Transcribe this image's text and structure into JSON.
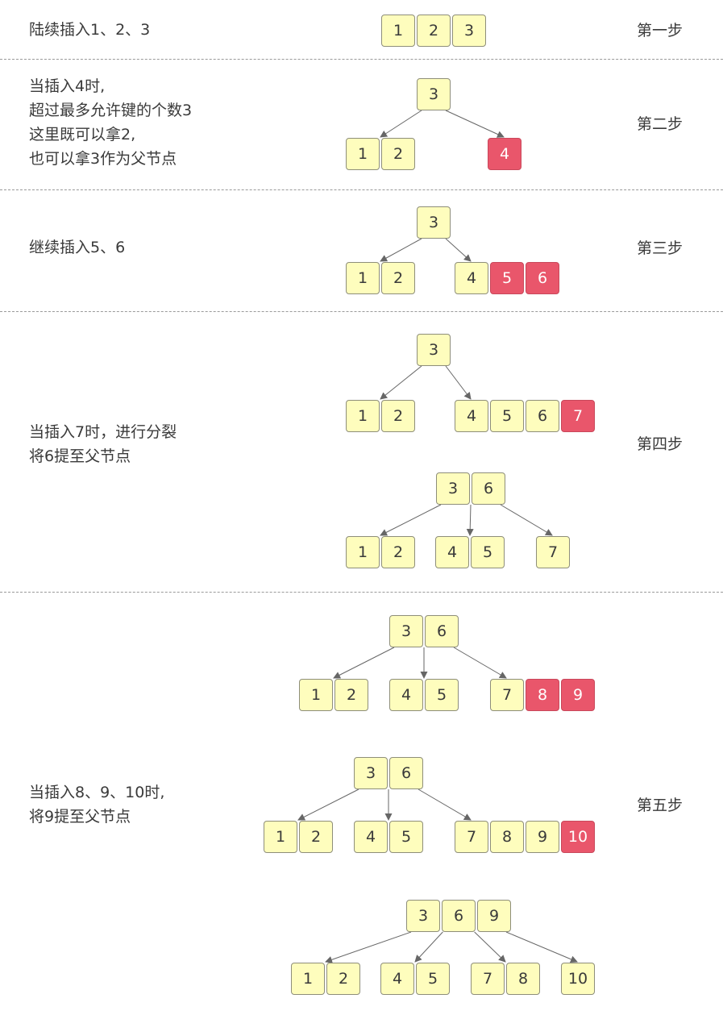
{
  "colors": {
    "key_fill": "#fefdbd",
    "key_border": "#8e8e7a",
    "new_key_fill": "#e9566b",
    "text": "#3a3a3a",
    "edge": "#666666",
    "divider": "#9a9a9a"
  },
  "steps": [
    {
      "label": "第一步",
      "description": "陆续插入1、2、3",
      "trees": [
        {
          "nodes": [
            {
              "keys": [
                {
                  "text": "1"
                },
                {
                  "text": "2"
                },
                {
                  "text": "3"
                }
              ]
            }
          ],
          "edges": []
        }
      ]
    },
    {
      "label": "第二步",
      "description": "当插入4时,\n超过最多允许键的个数3\n这里既可以拿2,\n也可以拿3作为父节点",
      "trees": [
        {
          "nodes": [
            {
              "keys": [
                {
                  "text": "3"
                }
              ]
            },
            {
              "keys": [
                {
                  "text": "1"
                },
                {
                  "text": "2"
                }
              ]
            },
            {
              "keys": [
                {
                  "text": "4",
                  "new": true
                }
              ]
            }
          ],
          "edges": [
            [
              0,
              1
            ],
            [
              0,
              2
            ]
          ]
        }
      ]
    },
    {
      "label": "第三步",
      "description": "继续插入5、6",
      "trees": [
        {
          "nodes": [
            {
              "keys": [
                {
                  "text": "3"
                }
              ]
            },
            {
              "keys": [
                {
                  "text": "1"
                },
                {
                  "text": "2"
                }
              ]
            },
            {
              "keys": [
                {
                  "text": "4"
                },
                {
                  "text": "5",
                  "new": true
                },
                {
                  "text": "6",
                  "new": true
                }
              ]
            }
          ],
          "edges": [
            [
              0,
              1
            ],
            [
              0,
              2
            ]
          ]
        }
      ]
    },
    {
      "label": "第四步",
      "description": "当插入7时，进行分裂\n将6提至父节点",
      "trees": [
        {
          "nodes": [
            {
              "keys": [
                {
                  "text": "3"
                }
              ]
            },
            {
              "keys": [
                {
                  "text": "1"
                },
                {
                  "text": "2"
                }
              ]
            },
            {
              "keys": [
                {
                  "text": "4"
                },
                {
                  "text": "5"
                },
                {
                  "text": "6"
                },
                {
                  "text": "7",
                  "new": true
                }
              ]
            }
          ],
          "edges": [
            [
              0,
              1
            ],
            [
              0,
              2
            ]
          ]
        },
        {
          "nodes": [
            {
              "keys": [
                {
                  "text": "3"
                },
                {
                  "text": "6"
                }
              ]
            },
            {
              "keys": [
                {
                  "text": "1"
                },
                {
                  "text": "2"
                }
              ]
            },
            {
              "keys": [
                {
                  "text": "4"
                },
                {
                  "text": "5"
                }
              ]
            },
            {
              "keys": [
                {
                  "text": "7"
                }
              ]
            }
          ],
          "edges": [
            [
              0,
              1
            ],
            [
              0,
              2
            ],
            [
              0,
              3
            ]
          ]
        }
      ]
    },
    {
      "label": "第五步",
      "description": "当插入8、9、10时,\n将9提至父节点",
      "trees": [
        {
          "nodes": [
            {
              "keys": [
                {
                  "text": "3"
                },
                {
                  "text": "6"
                }
              ]
            },
            {
              "keys": [
                {
                  "text": "1"
                },
                {
                  "text": "2"
                }
              ]
            },
            {
              "keys": [
                {
                  "text": "4"
                },
                {
                  "text": "5"
                }
              ]
            },
            {
              "keys": [
                {
                  "text": "7"
                },
                {
                  "text": "8",
                  "new": true
                },
                {
                  "text": "9",
                  "new": true
                }
              ]
            }
          ],
          "edges": [
            [
              0,
              1
            ],
            [
              0,
              2
            ],
            [
              0,
              3
            ]
          ]
        },
        {
          "nodes": [
            {
              "keys": [
                {
                  "text": "3"
                },
                {
                  "text": "6"
                }
              ]
            },
            {
              "keys": [
                {
                  "text": "1"
                },
                {
                  "text": "2"
                }
              ]
            },
            {
              "keys": [
                {
                  "text": "4"
                },
                {
                  "text": "5"
                }
              ]
            },
            {
              "keys": [
                {
                  "text": "7"
                },
                {
                  "text": "8"
                },
                {
                  "text": "9"
                },
                {
                  "text": "10",
                  "new": true
                }
              ]
            }
          ],
          "edges": [
            [
              0,
              1
            ],
            [
              0,
              2
            ],
            [
              0,
              3
            ]
          ]
        },
        {
          "nodes": [
            {
              "keys": [
                {
                  "text": "3"
                },
                {
                  "text": "6"
                },
                {
                  "text": "9"
                }
              ]
            },
            {
              "keys": [
                {
                  "text": "1"
                },
                {
                  "text": "2"
                }
              ]
            },
            {
              "keys": [
                {
                  "text": "4"
                },
                {
                  "text": "5"
                }
              ]
            },
            {
              "keys": [
                {
                  "text": "7"
                },
                {
                  "text": "8"
                }
              ]
            },
            {
              "keys": [
                {
                  "text": "10"
                }
              ]
            }
          ],
          "edges": [
            [
              0,
              1
            ],
            [
              0,
              2
            ],
            [
              0,
              3
            ],
            [
              0,
              4
            ]
          ]
        }
      ]
    }
  ]
}
